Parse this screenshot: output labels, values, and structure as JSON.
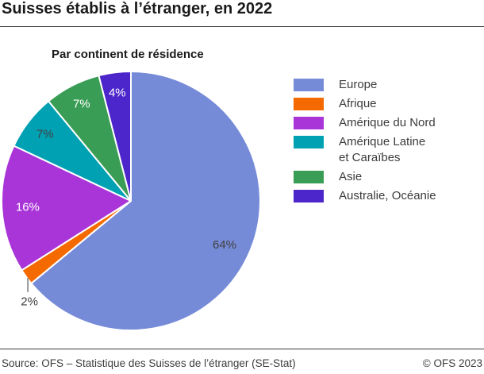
{
  "header": {
    "title": "Suisses établis à l’étranger, en 2022"
  },
  "chart_data": {
    "type": "pie",
    "title": "Par continent de résidence",
    "unit": "percent",
    "start_angle": "top",
    "direction": "clockwise",
    "legend_position": "right",
    "slices": [
      {
        "id": "europe",
        "label": "Europe",
        "value": 64,
        "display_value": "64%",
        "color": "#768BD8",
        "value_label_color": "#404040",
        "value_label_position": "inside"
      },
      {
        "id": "afrique",
        "label": "Afrique",
        "value": 2,
        "display_value": "2%",
        "color": "#F56A00",
        "value_label_color": "#404040",
        "value_label_position": "outside"
      },
      {
        "id": "amerique-du-nord",
        "label": "Amérique du Nord",
        "value": 16,
        "display_value": "16%",
        "color": "#A935D8",
        "value_label_color": "#FFFFFF",
        "value_label_position": "inside"
      },
      {
        "id": "amerique-latine-et-caraibes",
        "label": "Amérique Latine et Caraïbes",
        "legend_label": "Amérique Latine\net Caraïbes",
        "value": 7,
        "display_value": "7%",
        "color": "#00A1B2",
        "value_label_color": "#404040",
        "value_label_position": "inside"
      },
      {
        "id": "asie",
        "label": "Asie",
        "value": 7,
        "display_value": "7%",
        "color": "#3A9D55",
        "value_label_color": "#FFFFFF",
        "value_label_position": "inside"
      },
      {
        "id": "australie-oceanie",
        "label": "Australie, Océanie",
        "value": 4,
        "display_value": "4%",
        "color": "#4C26CB",
        "value_label_color": "#FFFFFF",
        "value_label_position": "inside"
      }
    ],
    "callout_line_color": "#7a7a7a"
  },
  "footer": {
    "source": "Source: OFS – Statistique des Suisses de l’étranger (SE-Stat)",
    "copyright": "© OFS 2023"
  }
}
